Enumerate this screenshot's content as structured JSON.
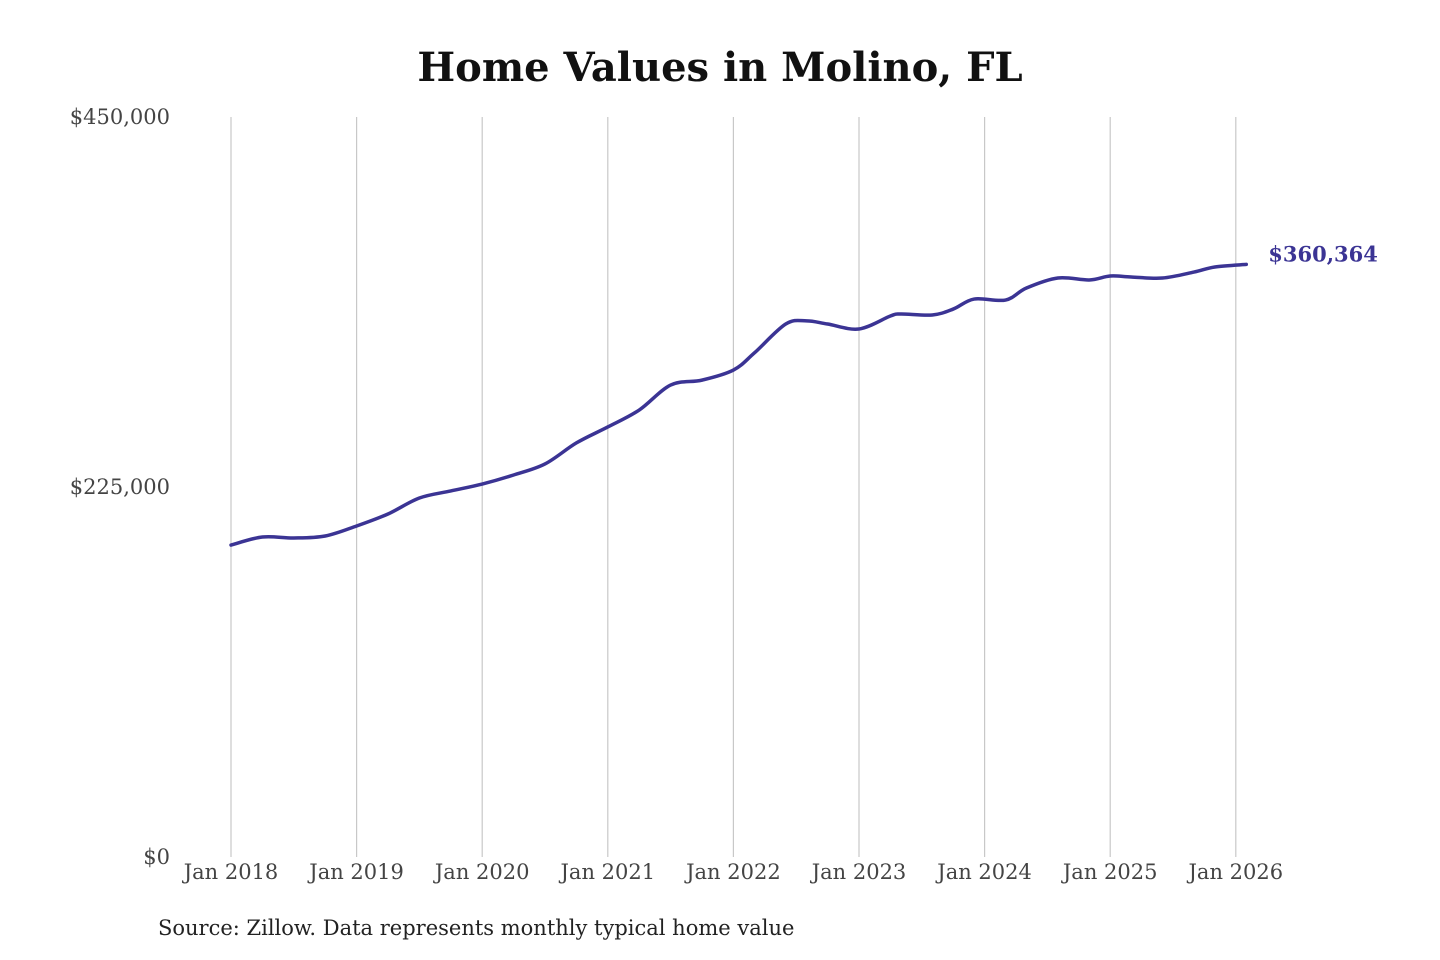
{
  "chart_data": {
    "type": "line",
    "title": "Home Values in Molino, FL",
    "xlabel": "",
    "ylabel": "",
    "ylim": [
      0,
      450000
    ],
    "y_ticks": [
      {
        "value": 0,
        "label": "$0"
      },
      {
        "value": 225000,
        "label": "$225,000"
      },
      {
        "value": 450000,
        "label": "$450,000"
      }
    ],
    "x_ticks": [
      "Jan 2018",
      "Jan 2019",
      "Jan 2020",
      "Jan 2021",
      "Jan 2022",
      "Jan 2023",
      "Jan 2024",
      "Jan 2025",
      "Jan 2026"
    ],
    "grid": {
      "vertical": true,
      "horizontal": false
    },
    "line_color": "#3b3494",
    "grid_color": "#c8c8c8",
    "end_label": "$360,364",
    "series": [
      {
        "x": [
          "2018-01",
          "2018-04",
          "2018-07",
          "2018-10",
          "2019-01",
          "2019-04",
          "2019-07",
          "2019-10",
          "2020-01",
          "2020-04",
          "2020-07",
          "2020-10",
          "2021-01",
          "2021-04",
          "2021-07",
          "2021-10",
          "2022-01",
          "2022-03",
          "2022-06",
          "2022-08",
          "2022-10",
          "2023-01",
          "2023-04",
          "2023-05",
          "2023-08",
          "2023-10",
          "2023-12",
          "2024-03",
          "2024-05",
          "2024-08",
          "2024-11",
          "2025-01",
          "2025-03",
          "2025-06",
          "2025-09",
          "2025-11",
          "2026-02"
        ],
        "values": [
          189700,
          194600,
          194000,
          195200,
          201300,
          208600,
          218300,
          222600,
          226800,
          232300,
          239000,
          251800,
          261500,
          271800,
          287000,
          290000,
          296100,
          306500,
          324100,
          326000,
          324100,
          321100,
          329000,
          330200,
          329600,
          333200,
          339300,
          338700,
          346000,
          352100,
          350900,
          353300,
          352700,
          352100,
          355700,
          358800,
          360364
        ]
      }
    ]
  },
  "source": "Source: Zillow. Data represents monthly typical home value"
}
